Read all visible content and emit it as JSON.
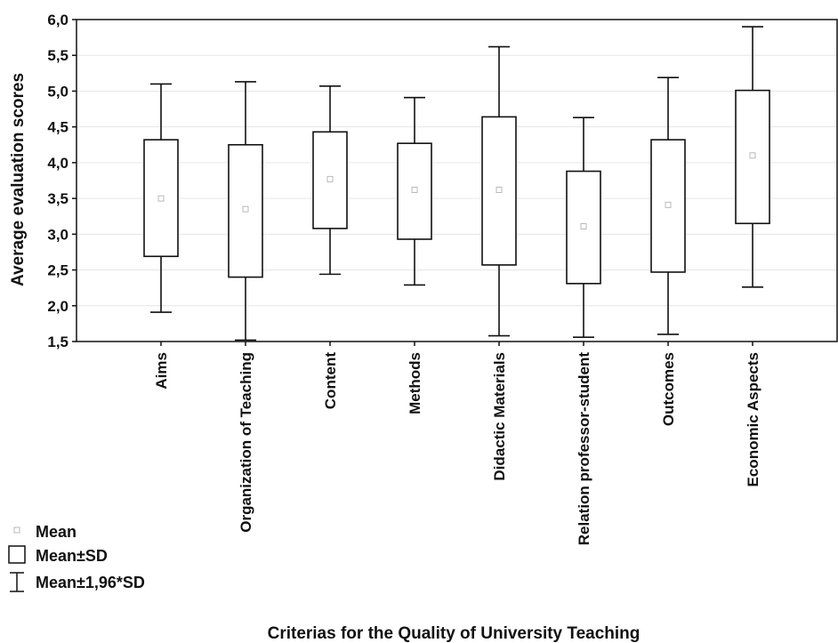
{
  "chart_data": {
    "type": "box",
    "categories": [
      "Aims",
      "Organization of Teaching",
      "Content",
      "Methods",
      "Didactic Materials",
      "Relation professor-student",
      "Outcomes",
      "Economic Aspects"
    ],
    "series": [
      {
        "name": "Mean",
        "values": [
          3.5,
          3.35,
          3.77,
          3.62,
          3.62,
          3.11,
          3.41,
          4.1
        ]
      },
      {
        "name": "Mean-SD",
        "values": [
          2.69,
          2.4,
          3.08,
          2.93,
          2.57,
          2.31,
          2.47,
          3.15
        ]
      },
      {
        "name": "Mean+SD",
        "values": [
          4.32,
          4.25,
          4.43,
          4.27,
          4.64,
          3.88,
          4.32,
          5.01
        ]
      },
      {
        "name": "Mean-1.96*SD",
        "values": [
          1.91,
          1.52,
          2.44,
          2.29,
          1.58,
          1.56,
          1.6,
          2.26
        ]
      },
      {
        "name": "Mean+1.96*SD",
        "values": [
          5.1,
          5.13,
          5.07,
          4.91,
          5.62,
          4.63,
          5.19,
          5.9
        ]
      }
    ],
    "xlabel": "Criterias for the Quality of University Teaching",
    "ylabel": "Average evaluation scores",
    "ylim": [
      1.5,
      6.0
    ],
    "yticks": [
      "1,5",
      "2,0",
      "2,5",
      "3,0",
      "3,5",
      "4,0",
      "4,5",
      "5,0",
      "5,5",
      "6,0"
    ],
    "grid": true,
    "legend": {
      "placement": "bottom-left",
      "entries": [
        "Mean",
        "Mean±SD",
        "Mean±1,96*SD"
      ]
    },
    "colors": {
      "box": "#111111",
      "grid": "#e6e6e6",
      "mean_marker": "#b8b8b8"
    }
  }
}
